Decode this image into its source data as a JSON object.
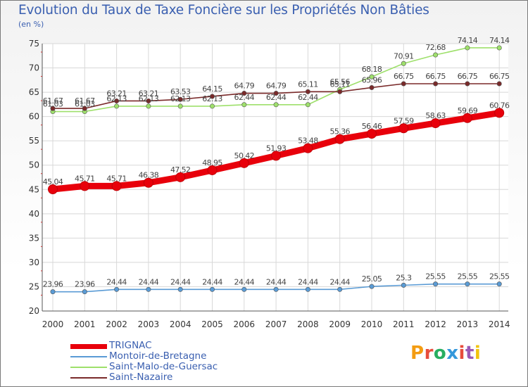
{
  "title": "Evolution du Taux de Taxe Foncière sur les Propriétés Non Bâties",
  "unit": "(en %)",
  "logo": {
    "text": "Proxiti",
    "colors": [
      "#f39c12",
      "#e74c3c",
      "#27ae60",
      "#3498db",
      "#e74c3c",
      "#9b59b6",
      "#f1c40f"
    ]
  },
  "chart_data": {
    "type": "line",
    "title": "Evolution du Taux de Taxe Foncière sur les Propriétés Non Bâties",
    "ylabel": "(en %)",
    "xlabel": "",
    "x": [
      "2000",
      "2001",
      "2002",
      "2003",
      "2004",
      "2005",
      "2006",
      "2007",
      "2008",
      "2009",
      "2010",
      "2011",
      "2012",
      "2013",
      "2014"
    ],
    "ylim": [
      20,
      75
    ],
    "yticks": [
      "20",
      "25",
      "30",
      "35",
      "40",
      "45",
      "50",
      "55",
      "60",
      "65",
      "70",
      "75"
    ],
    "grid": true,
    "legend": "bottom-left",
    "series": [
      {
        "name": "TRIGNAC",
        "color": "#e8000b",
        "values": [
          45.04,
          45.71,
          45.71,
          46.38,
          47.52,
          48.95,
          50.42,
          51.93,
          53.48,
          55.36,
          56.46,
          57.59,
          58.63,
          59.69,
          60.76
        ],
        "labels": [
          "45.04",
          "45.71",
          "45.71",
          "46.38",
          "47.52",
          "48.95",
          "50.42",
          "51.93",
          "53.48",
          "55.36",
          "56.46",
          "57.59",
          "58.63",
          "59.69",
          "60.76"
        ]
      },
      {
        "name": "Montoir-de-Bretagne",
        "color": "#5a9bd5",
        "values": [
          23.96,
          23.96,
          24.44,
          24.44,
          24.44,
          24.44,
          24.44,
          24.44,
          24.44,
          24.44,
          25.05,
          25.3,
          25.55,
          25.55,
          25.55
        ],
        "labels": [
          "23.96",
          "23.96",
          "24.44",
          "24.44",
          "24.44",
          "24.44",
          "24.44",
          "24.44",
          "24.44",
          "24.44",
          "25.05",
          "25.3",
          "25.55",
          "25.55",
          "25.55"
        ]
      },
      {
        "name": "Saint-Malo-de-Guersac",
        "color": "#9ee06b",
        "values": [
          61.03,
          61.03,
          62.13,
          62.13,
          62.13,
          62.13,
          62.44,
          62.44,
          62.44,
          65.56,
          68.18,
          70.91,
          72.68,
          74.14,
          74.14
        ],
        "labels": [
          "61.03",
          "61.03",
          "62.13",
          "62.13",
          "62.13",
          "62.13",
          "62.44",
          "62.44",
          "62.44",
          "65.56",
          "68.18",
          "70.91",
          "72.68",
          "74.14",
          "74.14"
        ]
      },
      {
        "name": "Saint-Nazaire",
        "color": "#7a2a2a",
        "values": [
          61.67,
          61.67,
          63.21,
          63.21,
          63.53,
          64.15,
          64.79,
          64.79,
          65.11,
          65.11,
          65.96,
          66.75,
          66.75,
          66.75,
          66.75
        ],
        "labels": [
          "61.67",
          "61.67",
          "63.21",
          "63.21",
          "63.53",
          "64.15",
          "64.79",
          "64.79",
          "65.11",
          "65.11",
          "65.96",
          "66.75",
          "66.75",
          "66.75",
          "66.75"
        ]
      }
    ]
  }
}
